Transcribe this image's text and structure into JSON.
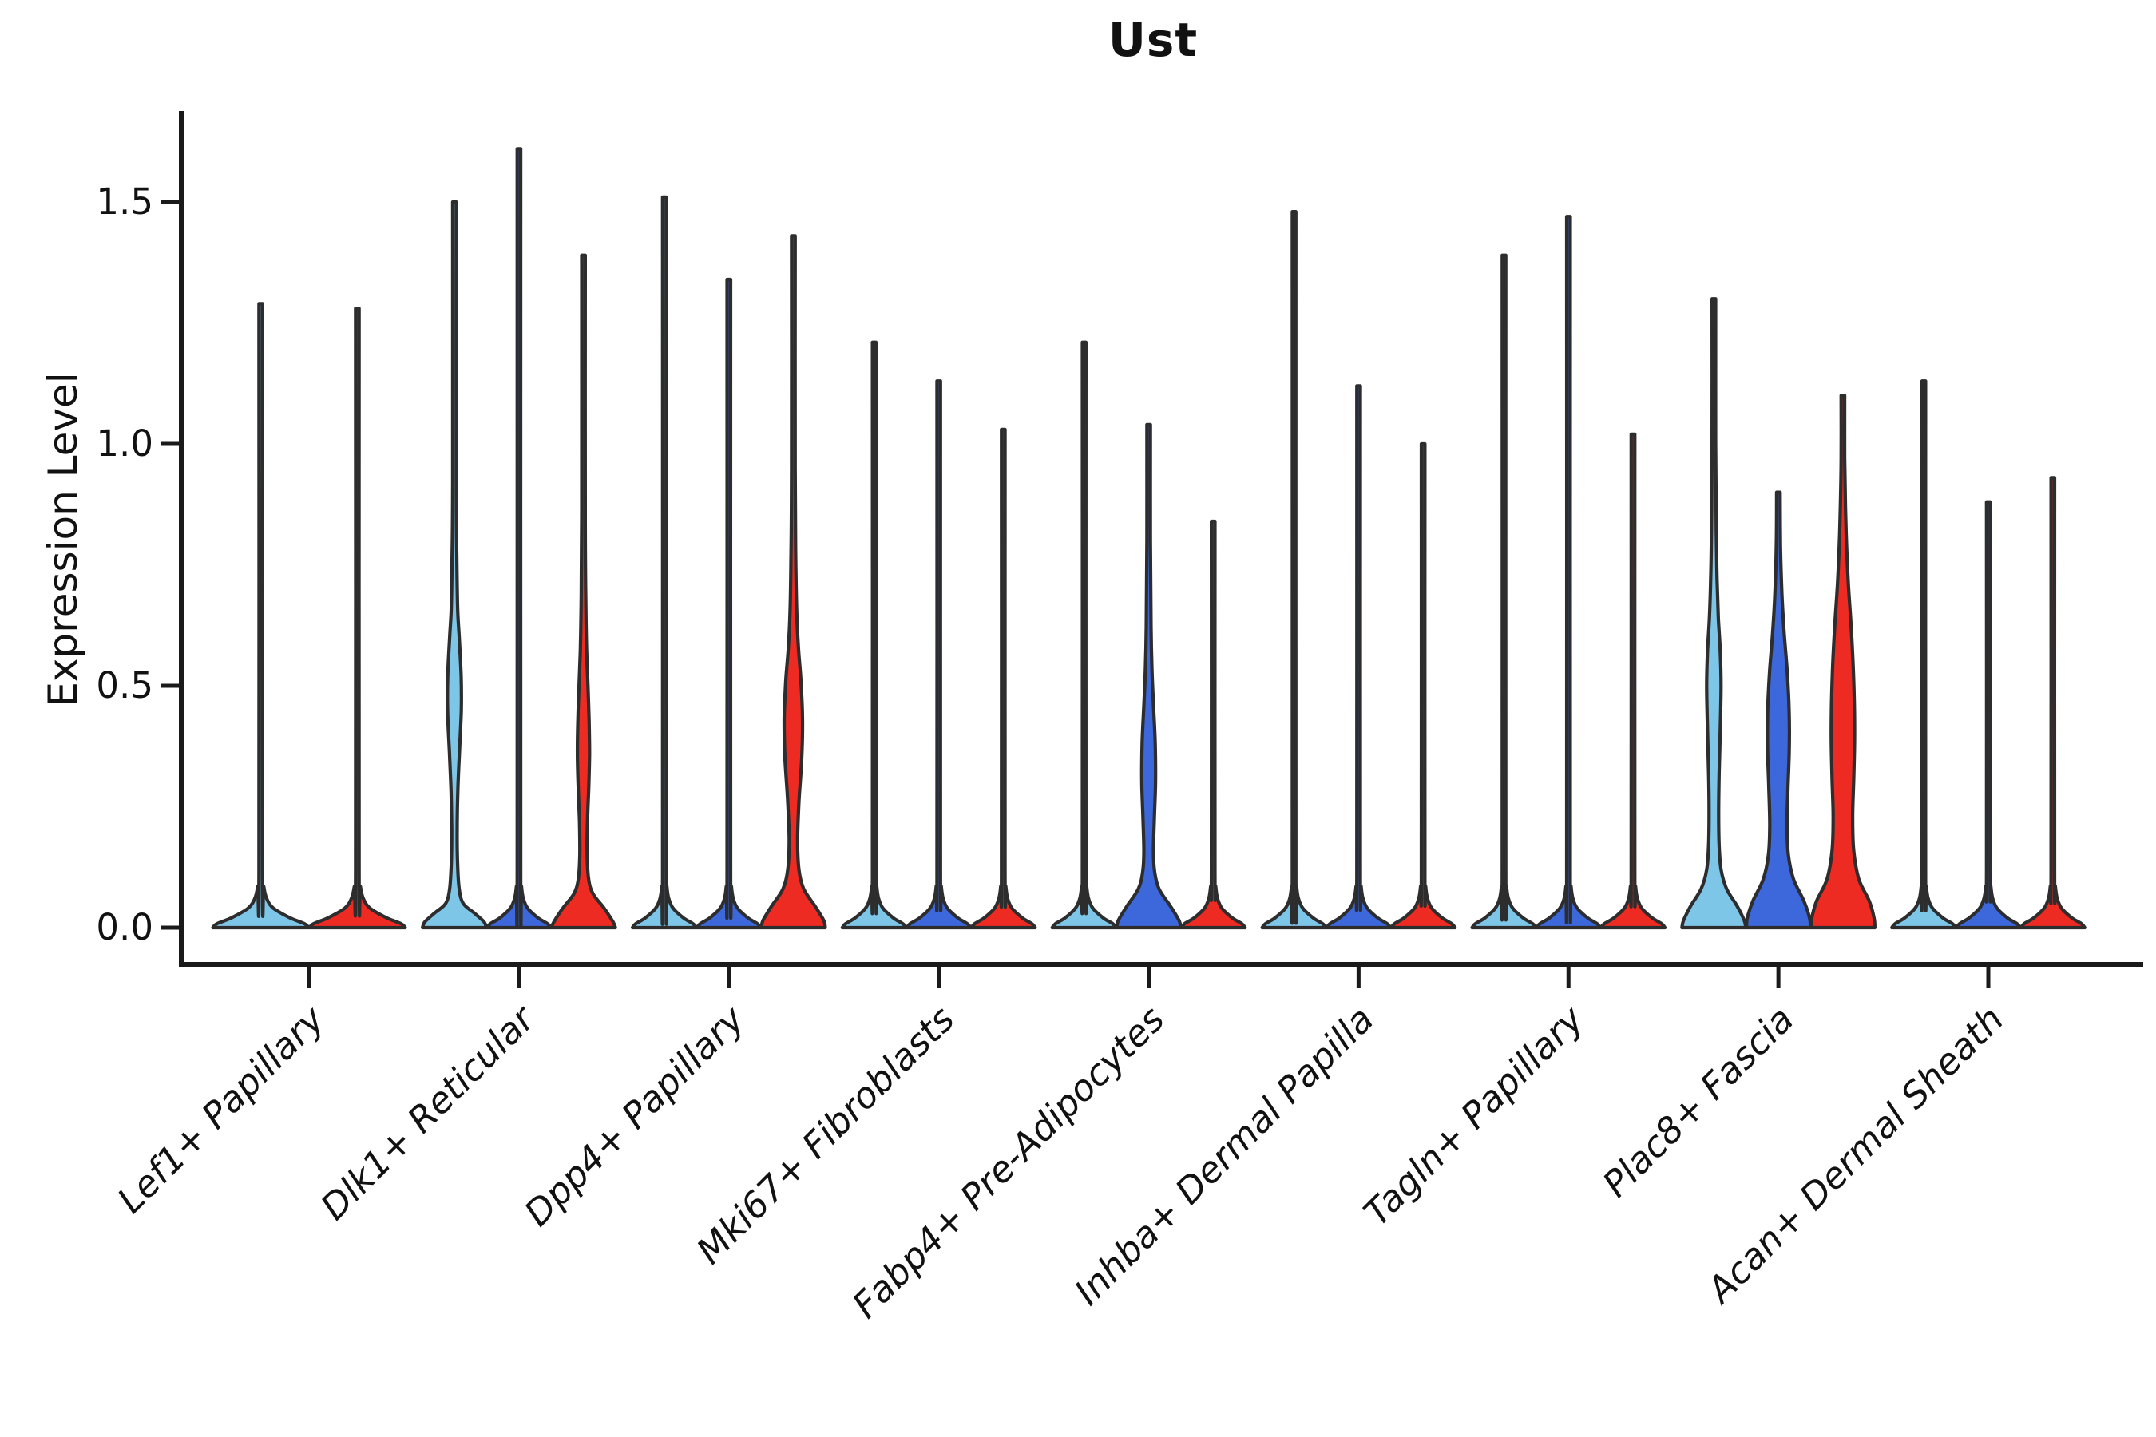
{
  "figure": {
    "background": "#FFFFFF"
  },
  "chart_data": {
    "type": "violin",
    "title": "Ust",
    "ylabel": "Expression Level",
    "xlabel": "",
    "legend": "none",
    "grid": "off",
    "ytick_labels": [
      "0.0",
      "0.5",
      "1.0",
      "1.5"
    ],
    "ytick_values": [
      0,
      0.5,
      1.0,
      1.5
    ],
    "ylim": [
      -0.08,
      1.69
    ],
    "categories": [
      "Lef1+ Papillary",
      "Dlk1+ Reticular",
      "Dpp4+ Papillary",
      "Mki67+ Fibroblasts",
      "Fabp4+ Pre-Adipocytes",
      "Inhba+ Dermal Papilla",
      "Tagln+ Papillary",
      "Plac8+ Fascia",
      "Acan+ Dermal Sheath"
    ],
    "palette": {
      "light_blue": "#7EC6E8",
      "dark_blue": "#3C68DB",
      "red": "#EE2B23",
      "outline": "#2D2D2D",
      "axis": "#1A1A1A",
      "text": "#111111"
    },
    "profiles": {
      "flat3": [
        [
          0,
          40
        ],
        [
          0.008,
          36
        ],
        [
          0.02,
          24
        ],
        [
          0.04,
          11
        ],
        [
          0.06,
          5.5
        ],
        [
          0.085,
          3.2
        ],
        [
          0.12,
          2.2
        ]
      ],
      "flat2": [
        [
          0,
          60
        ],
        [
          0.008,
          55
        ],
        [
          0.02,
          37
        ],
        [
          0.04,
          16
        ],
        [
          0.06,
          7.5
        ],
        [
          0.085,
          3.8
        ],
        [
          0.12,
          2.2
        ]
      ]
    },
    "groups": [
      {
        "category": "Lef1+ Papillary",
        "violins": [
          {
            "color": "light_blue",
            "max_expression": 1.29,
            "body": "flat2"
          },
          {
            "color": "red",
            "max_expression": 1.28,
            "body": "flat2"
          }
        ]
      },
      {
        "category": "Dlk1+ Reticular",
        "violins": [
          {
            "color": "light_blue",
            "max_expression": 1.5,
            "body": [
              [
                0,
                40
              ],
              [
                0.012,
                37
              ],
              [
                0.03,
                25
              ],
              [
                0.05,
                11
              ],
              [
                0.08,
                6
              ],
              [
                0.13,
                4
              ],
              [
                0.2,
                3.4
              ],
              [
                0.28,
                4.2
              ],
              [
                0.36,
                6.2
              ],
              [
                0.45,
                8.6
              ],
              [
                0.52,
                8.4
              ],
              [
                0.6,
                6
              ],
              [
                0.66,
                4
              ],
              [
                0.76,
                3
              ],
              [
                0.92,
                2.2
              ]
            ]
          },
          {
            "color": "dark_blue",
            "max_expression": 1.61,
            "body": "flat3"
          },
          {
            "color": "red",
            "max_expression": 1.39,
            "body": [
              [
                0,
                40
              ],
              [
                0.012,
                37
              ],
              [
                0.04,
                26
              ],
              [
                0.07,
                12
              ],
              [
                0.1,
                6.5
              ],
              [
                0.15,
                4.6
              ],
              [
                0.22,
                5
              ],
              [
                0.29,
                6.6
              ],
              [
                0.36,
                7.6
              ],
              [
                0.43,
                7
              ],
              [
                0.5,
                5.6
              ],
              [
                0.57,
                4
              ],
              [
                0.66,
                3
              ],
              [
                0.85,
                2.2
              ]
            ]
          }
        ]
      },
      {
        "category": "Dpp4+ Papillary",
        "violins": [
          {
            "color": "light_blue",
            "max_expression": 1.51,
            "body": "flat3"
          },
          {
            "color": "dark_blue",
            "max_expression": 1.34,
            "body": "flat3"
          },
          {
            "color": "red",
            "max_expression": 1.43,
            "body": [
              [
                0,
                40
              ],
              [
                0.015,
                38
              ],
              [
                0.045,
                27
              ],
              [
                0.08,
                13
              ],
              [
                0.12,
                7
              ],
              [
                0.18,
                5.2
              ],
              [
                0.26,
                7
              ],
              [
                0.35,
                10.5
              ],
              [
                0.43,
                11.5
              ],
              [
                0.51,
                9.5
              ],
              [
                0.58,
                6.2
              ],
              [
                0.65,
                4.2
              ],
              [
                0.76,
                3
              ],
              [
                0.95,
                2.2
              ]
            ]
          }
        ]
      },
      {
        "category": "Mki67+ Fibroblasts",
        "violins": [
          {
            "color": "light_blue",
            "max_expression": 1.21,
            "body": "flat3"
          },
          {
            "color": "dark_blue",
            "max_expression": 1.13,
            "body": "flat3"
          },
          {
            "color": "red",
            "max_expression": 1.03,
            "body": "flat3"
          }
        ]
      },
      {
        "category": "Fabp4+ Pre-Adipocytes",
        "violins": [
          {
            "color": "light_blue",
            "max_expression": 1.21,
            "body": "flat3"
          },
          {
            "color": "dark_blue",
            "max_expression": 1.04,
            "body": [
              [
                0,
                40
              ],
              [
                0.015,
                38
              ],
              [
                0.045,
                27
              ],
              [
                0.08,
                13
              ],
              [
                0.115,
                7.5
              ],
              [
                0.16,
                6
              ],
              [
                0.23,
                7.2
              ],
              [
                0.3,
                8.6
              ],
              [
                0.38,
                8.2
              ],
              [
                0.46,
                6
              ],
              [
                0.53,
                4.2
              ],
              [
                0.62,
                3
              ],
              [
                0.8,
                2.2
              ]
            ]
          },
          {
            "color": "red",
            "max_expression": 0.84,
            "body": "flat3"
          }
        ]
      },
      {
        "category": "Inhba+ Dermal Papilla",
        "violins": [
          {
            "color": "light_blue",
            "max_expression": 1.48,
            "body": "flat3"
          },
          {
            "color": "dark_blue",
            "max_expression": 1.12,
            "body": "flat3"
          },
          {
            "color": "red",
            "max_expression": 1.0,
            "body": "flat3"
          }
        ]
      },
      {
        "category": "Tagln+ Papillary",
        "violins": [
          {
            "color": "light_blue",
            "max_expression": 1.39,
            "body": "flat3"
          },
          {
            "color": "dark_blue",
            "max_expression": 1.47,
            "body": "flat3"
          },
          {
            "color": "red",
            "max_expression": 1.02,
            "body": "flat3"
          }
        ]
      },
      {
        "category": "Plac8+ Fascia",
        "violins": [
          {
            "color": "light_blue",
            "max_expression": 1.3,
            "body": [
              [
                0,
                40
              ],
              [
                0.015,
                38
              ],
              [
                0.045,
                29
              ],
              [
                0.08,
                16
              ],
              [
                0.12,
                9
              ],
              [
                0.17,
                6.6
              ],
              [
                0.24,
                6
              ],
              [
                0.32,
                6.6
              ],
              [
                0.41,
                8
              ],
              [
                0.5,
                9
              ],
              [
                0.57,
                8
              ],
              [
                0.64,
                5.6
              ],
              [
                0.72,
                4
              ],
              [
                0.82,
                3
              ],
              [
                1.0,
                2.2
              ]
            ]
          },
          {
            "color": "dark_blue",
            "max_expression": 0.9,
            "body": [
              [
                0,
                40
              ],
              [
                0.02,
                39
              ],
              [
                0.055,
                32
              ],
              [
                0.1,
                19
              ],
              [
                0.15,
                12.5
              ],
              [
                0.21,
                10.8
              ],
              [
                0.29,
                12
              ],
              [
                0.37,
                13.6
              ],
              [
                0.45,
                13.4
              ],
              [
                0.53,
                11
              ],
              [
                0.61,
                7.2
              ],
              [
                0.69,
                4.4
              ],
              [
                0.79,
                2.6
              ]
            ]
          },
          {
            "color": "red",
            "max_expression": 1.1,
            "body": [
              [
                0,
                40
              ],
              [
                0.02,
                39
              ],
              [
                0.055,
                33
              ],
              [
                0.1,
                20
              ],
              [
                0.16,
                13.5
              ],
              [
                0.23,
                12.2
              ],
              [
                0.31,
                13.6
              ],
              [
                0.39,
                14.6
              ],
              [
                0.47,
                14.2
              ],
              [
                0.55,
                12.6
              ],
              [
                0.63,
                10
              ],
              [
                0.71,
                6.8
              ],
              [
                0.79,
                4.6
              ],
              [
                0.87,
                3.2
              ],
              [
                0.97,
                2.2
              ]
            ]
          }
        ]
      },
      {
        "category": "Acan+ Dermal Sheath",
        "violins": [
          {
            "color": "light_blue",
            "max_expression": 1.13,
            "body": "flat3"
          },
          {
            "color": "dark_blue",
            "max_expression": 0.88,
            "body": "flat3"
          },
          {
            "color": "red",
            "max_expression": 0.93,
            "body": "flat3"
          }
        ]
      }
    ]
  }
}
